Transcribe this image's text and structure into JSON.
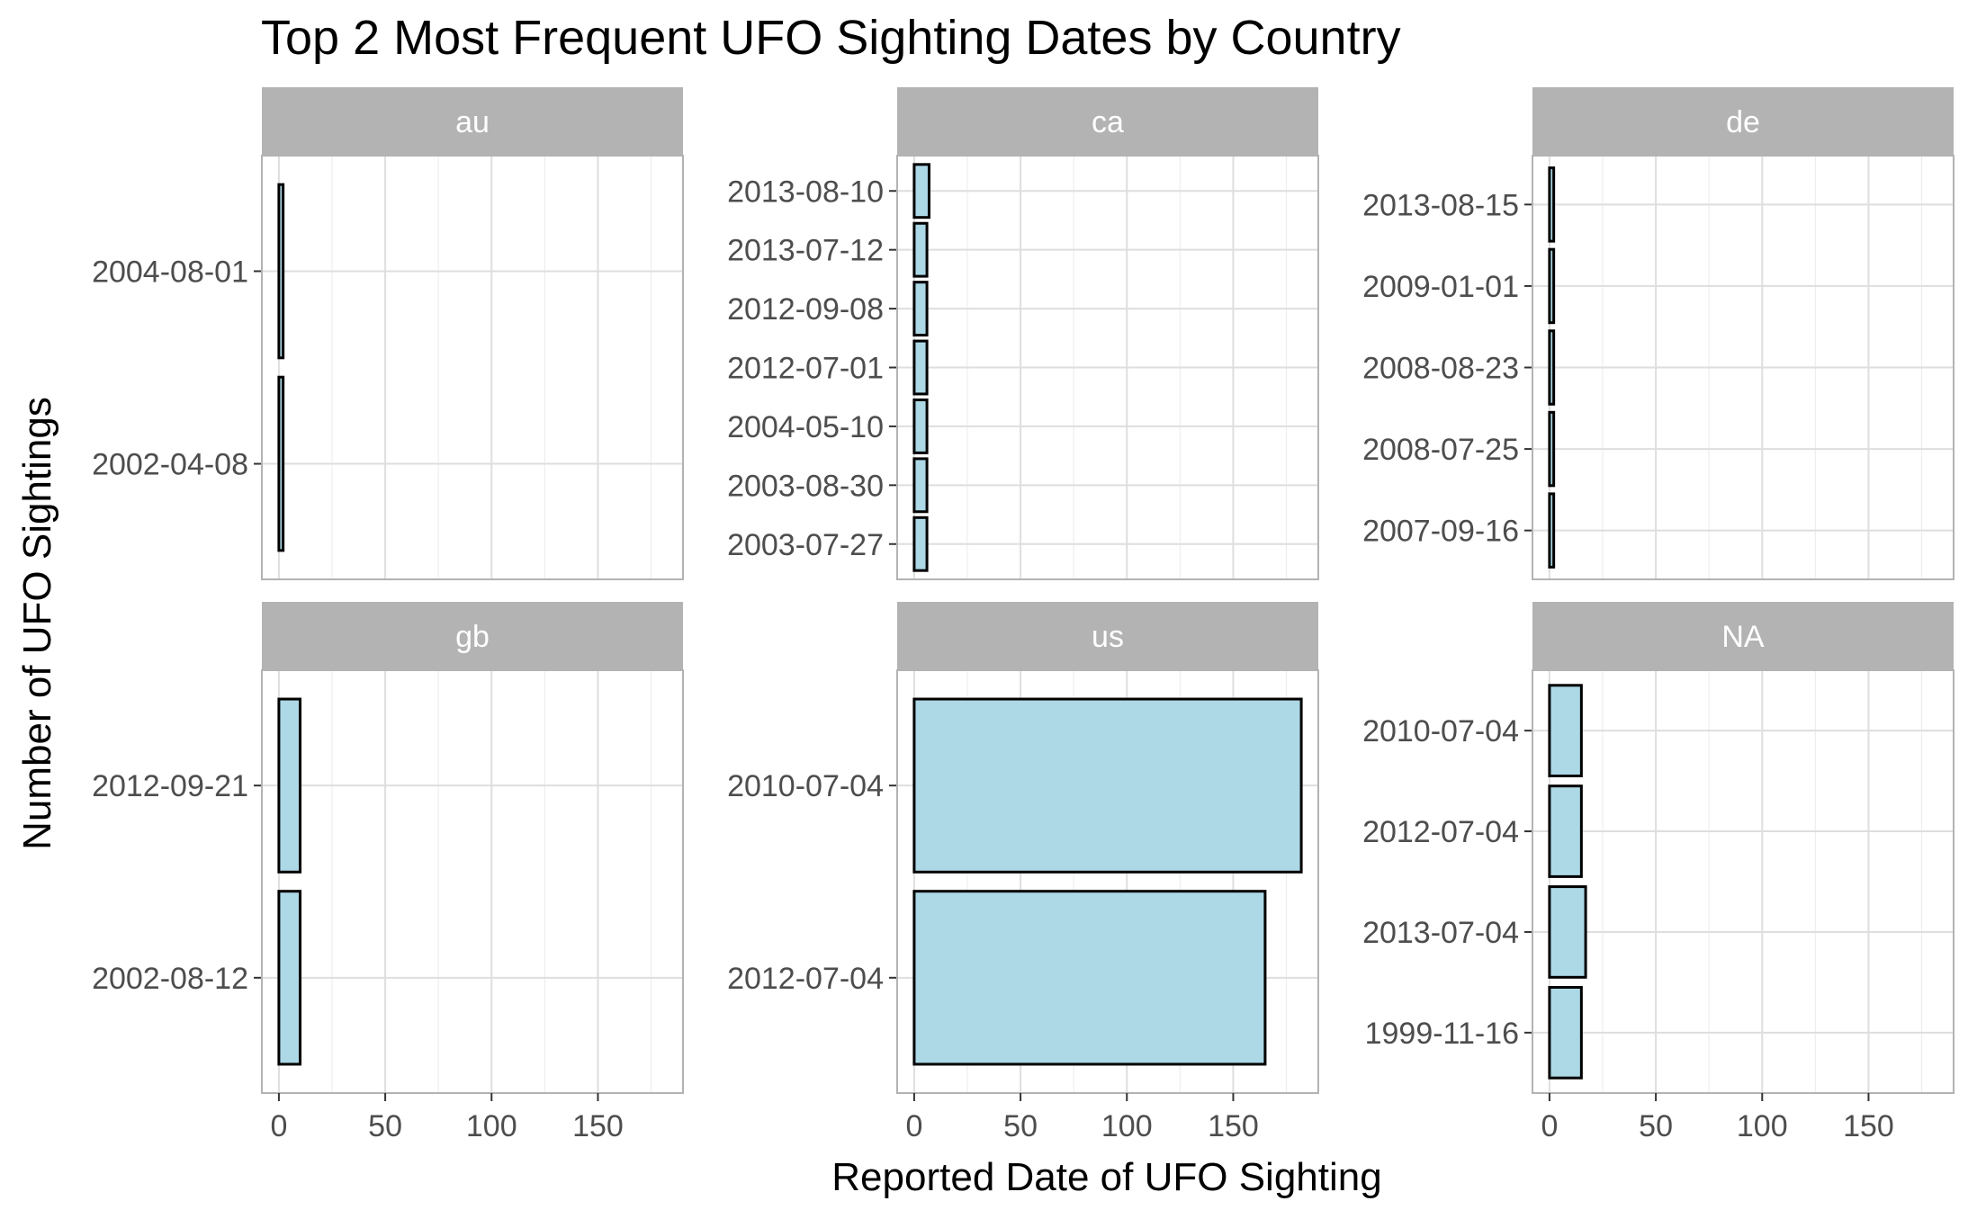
{
  "chart_data": {
    "type": "bar",
    "orientation": "horizontal",
    "title": "Top 2 Most Frequent UFO Sighting Dates by Country",
    "xlabel": "Reported Date of UFO Sighting",
    "ylabel": "Number of UFO Sightings",
    "xlim": [
      -8,
      190
    ],
    "xticks": [
      0,
      50,
      100,
      150
    ],
    "grid": true,
    "bar_fill": "#add8e6",
    "bar_stroke": "#000000",
    "strip_color": "#b3b3b3",
    "strip_text_color": "#ffffff",
    "facets": [
      {
        "label": "au",
        "categories": [
          "2004-08-01",
          "2002-04-08"
        ],
        "values": [
          2,
          2
        ]
      },
      {
        "label": "ca",
        "categories": [
          "2013-08-10",
          "2013-07-12",
          "2012-09-08",
          "2012-07-01",
          "2004-05-10",
          "2003-08-30",
          "2003-07-27"
        ],
        "values": [
          7,
          6,
          6,
          6,
          6,
          6,
          6
        ]
      },
      {
        "label": "de",
        "categories": [
          "2013-08-15",
          "2009-01-01",
          "2008-08-23",
          "2008-07-25",
          "2007-09-16"
        ],
        "values": [
          2,
          2,
          2,
          2,
          2
        ]
      },
      {
        "label": "gb",
        "categories": [
          "2012-09-21",
          "2002-08-12"
        ],
        "values": [
          10,
          10
        ]
      },
      {
        "label": "us",
        "categories": [
          "2010-07-04",
          "2012-07-04"
        ],
        "values": [
          182,
          165
        ]
      },
      {
        "label": "NA",
        "categories": [
          "2010-07-04",
          "2012-07-04",
          "2013-07-04",
          "1999-11-16"
        ],
        "values": [
          15,
          15,
          17,
          15
        ]
      }
    ]
  }
}
